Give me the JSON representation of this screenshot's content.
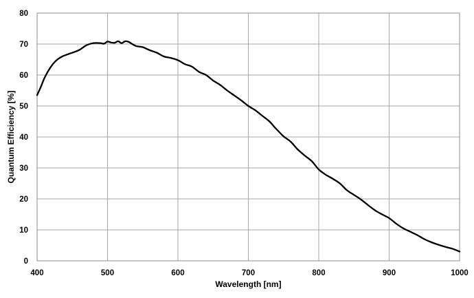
{
  "chart_data": {
    "type": "line",
    "title": "",
    "xlabel": "Wavelength [nm]",
    "ylabel": "Quantum Efficiency [%]",
    "xlim": [
      400,
      1000
    ],
    "ylim": [
      0,
      80
    ],
    "xticks": [
      400,
      500,
      600,
      700,
      800,
      900,
      1000
    ],
    "yticks": [
      0,
      10,
      20,
      30,
      40,
      50,
      60,
      70,
      80
    ],
    "xtick_labels": [
      "400",
      "500",
      "600",
      "700",
      "800",
      "900",
      "1000"
    ],
    "ytick_labels": [
      "0",
      "10",
      "20",
      "30",
      "40",
      "50",
      "60",
      "70",
      "80"
    ],
    "grid": true,
    "legend": false,
    "series": [
      {
        "color": "#000000",
        "x": [
          400,
          405,
          410,
          415,
          420,
          425,
          430,
          435,
          440,
          450,
          460,
          470,
          480,
          490,
          495,
          500,
          505,
          510,
          515,
          520,
          525,
          530,
          540,
          550,
          560,
          570,
          580,
          590,
          600,
          610,
          620,
          630,
          640,
          650,
          660,
          670,
          680,
          690,
          700,
          710,
          720,
          730,
          740,
          750,
          760,
          770,
          780,
          790,
          800,
          810,
          820,
          830,
          840,
          850,
          860,
          870,
          880,
          890,
          900,
          910,
          920,
          930,
          940,
          950,
          960,
          970,
          980,
          990,
          1000
        ],
        "y": [
          53.5,
          56,
          58.8,
          61,
          62.8,
          64.2,
          65.2,
          65.9,
          66.4,
          67.2,
          68.1,
          69.6,
          70.3,
          70.3,
          70.1,
          70.8,
          70.5,
          70.4,
          70.9,
          70.3,
          70.9,
          70.7,
          69.4,
          69,
          68,
          67.2,
          66,
          65.5,
          64.8,
          63.5,
          62.7,
          61,
          60,
          58.2,
          56.8,
          55,
          53.4,
          51.8,
          50,
          48.6,
          46.8,
          45,
          42.5,
          40.2,
          38.5,
          36,
          34,
          32.2,
          29.5,
          27.8,
          26.5,
          25,
          22.8,
          21.3,
          19.8,
          18,
          16.3,
          15,
          13.8,
          12,
          10.5,
          9.4,
          8.3,
          7,
          6,
          5.2,
          4.5,
          3.9,
          3
        ]
      }
    ]
  }
}
